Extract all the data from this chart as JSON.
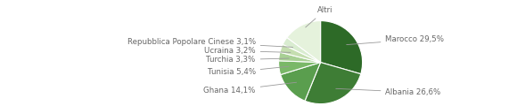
{
  "labels": [
    "Marocco 29,5%",
    "Albania 26,6%",
    "Ghana 14,1%",
    "Tunisia 5,4%",
    "Turchia 3,3%",
    "Ucraina 3,2%",
    "Repubblica Popolare Cinese 3,1%",
    "Altri"
  ],
  "values": [
    29.5,
    26.6,
    14.1,
    5.4,
    3.3,
    3.2,
    3.1,
    14.8
  ],
  "colors": [
    "#2d6a27",
    "#3e7d35",
    "#5a9e4e",
    "#7ab868",
    "#a8d094",
    "#c5deb0",
    "#d9ecd0",
    "#e5f2dc"
  ],
  "startangle": 90,
  "counterclock": false,
  "figsize": [
    5.8,
    1.2
  ],
  "dpi": 100,
  "bg_color": "#ffffff",
  "text_color": "#666666",
  "line_color": "#999999",
  "fontsize": 6.2,
  "wedge_edge_color": "#ffffff",
  "wedge_edge_width": 0.8
}
